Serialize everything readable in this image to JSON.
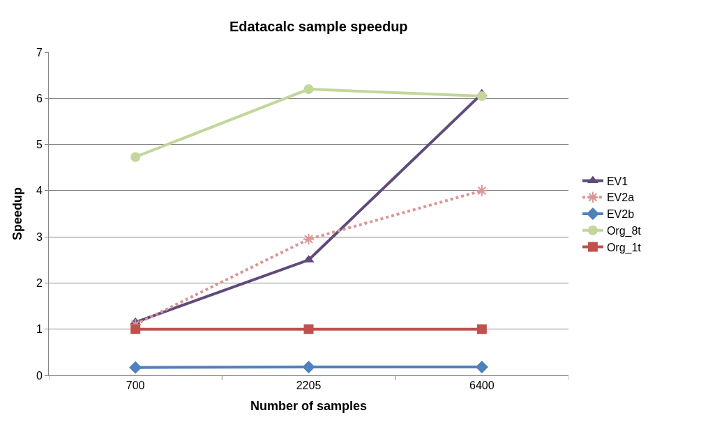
{
  "chart_data": {
    "type": "line",
    "title": "Edatacalc sample speedup",
    "xlabel": "Number of samples",
    "ylabel": "Speedup",
    "categories": [
      "700",
      "2205",
      "6400"
    ],
    "series": [
      {
        "name": "EV1",
        "color": "#604a7b",
        "values": [
          1.15,
          2.5,
          6.1
        ],
        "marker": "triangle",
        "line_style": "solid"
      },
      {
        "name": "EV2a",
        "color": "#d99694",
        "values": [
          1.1,
          2.95,
          4.0
        ],
        "marker": "cross",
        "line_style": "dotted"
      },
      {
        "name": "EV2b",
        "color": "#4f81bd",
        "values": [
          0.17,
          0.18,
          0.18
        ],
        "marker": "diamond",
        "line_style": "solid"
      },
      {
        "name": "Org_8t",
        "color": "#c3d69b",
        "values": [
          4.73,
          6.2,
          6.05
        ],
        "marker": "circle",
        "line_style": "solid"
      },
      {
        "name": "Org_1t",
        "color": "#c0504d",
        "values": [
          1,
          1,
          1
        ],
        "marker": "square",
        "line_style": "solid"
      }
    ],
    "ylim": [
      0,
      7
    ],
    "yticks": [
      0,
      1,
      2,
      3,
      4,
      5,
      6,
      7
    ],
    "grid": "y",
    "legend": "right"
  }
}
